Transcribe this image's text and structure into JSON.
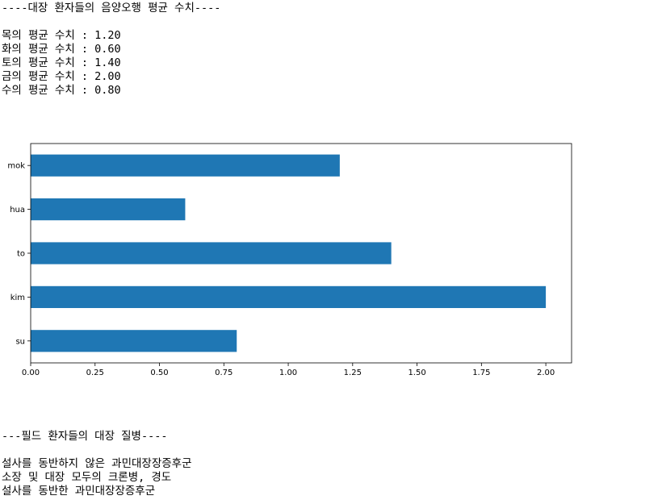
{
  "output_top": {
    "header": "----대장 환자들의 음양오행 평균 수치----",
    "lines": [
      "목의 평균 수치 : 1.20",
      "화의 평균 수치 : 0.60",
      "토의 평균 수치 : 1.40",
      "금의 평균 수치 : 2.00",
      "수의 평균 수치 : 0.80"
    ]
  },
  "chart_data": {
    "type": "bar",
    "orientation": "horizontal",
    "categories": [
      "mok",
      "hua",
      "to",
      "kim",
      "su"
    ],
    "values": [
      1.2,
      0.6,
      1.4,
      2.0,
      0.8
    ],
    "xlabel": "",
    "ylabel": "",
    "title": "",
    "xlim": [
      0,
      2.1
    ],
    "xticks": [
      "0.00",
      "0.25",
      "0.50",
      "0.75",
      "1.00",
      "1.25",
      "1.50",
      "1.75",
      "2.00"
    ],
    "color": "#1f77b4",
    "grid": false
  },
  "output_bottom": {
    "header": "---필드 환자들의 대장 질병----",
    "lines": [
      "설사를 동반하지 않은 과민대장장증후군",
      "소장 및 대장 모두의 크론병, 경도",
      "설사를 동반한 과민대장장증후군"
    ]
  }
}
